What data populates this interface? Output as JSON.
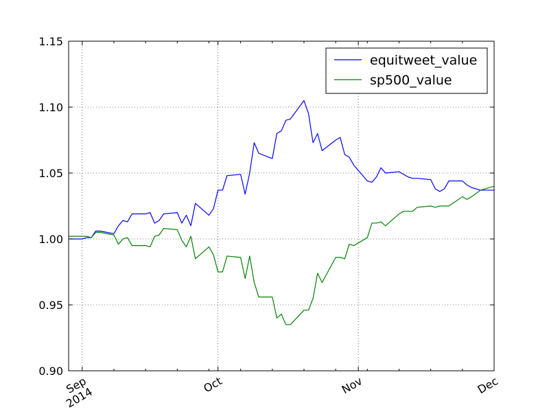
{
  "chart_data": {
    "type": "line",
    "title": "",
    "xlabel": "",
    "ylabel": "",
    "xlim": [
      "2014-08-29",
      "2014-12-01"
    ],
    "ylim": [
      0.9,
      1.15
    ],
    "grid": true,
    "legend_placement": "top-right",
    "y_ticks": [
      {
        "value": 0.9,
        "label": "0.90"
      },
      {
        "value": 0.95,
        "label": "0.95"
      },
      {
        "value": 1.0,
        "label": "1.00"
      },
      {
        "value": 1.05,
        "label": "1.05"
      },
      {
        "value": 1.1,
        "label": "1.10"
      },
      {
        "value": 1.15,
        "label": "1.15"
      }
    ],
    "x_major_ticks": [
      {
        "date": "2014-09-01",
        "label": "Sep",
        "sublabel": "2014"
      },
      {
        "date": "2014-10-01",
        "label": "Oct",
        "sublabel": ""
      },
      {
        "date": "2014-11-01",
        "label": "Nov",
        "sublabel": ""
      },
      {
        "date": "2014-12-01",
        "label": "Dec",
        "sublabel": ""
      }
    ],
    "x_minor_ticks": [
      "2014-09-08",
      "2014-09-15",
      "2014-09-22",
      "2014-09-29",
      "2014-10-06",
      "2014-10-13",
      "2014-10-20",
      "2014-10-27",
      "2014-11-03",
      "2014-11-10",
      "2014-11-17",
      "2014-11-24"
    ],
    "series": [
      {
        "name": "equitweet_value",
        "color": "#0000ff",
        "points": [
          [
            "2014-08-29",
            1.0
          ],
          [
            "2014-09-01",
            1.0
          ],
          [
            "2014-09-02",
            1.001
          ],
          [
            "2014-09-03",
            1.001
          ],
          [
            "2014-09-04",
            1.006
          ],
          [
            "2014-09-05",
            1.006
          ],
          [
            "2014-09-08",
            1.004
          ],
          [
            "2014-09-09",
            1.01
          ],
          [
            "2014-09-10",
            1.014
          ],
          [
            "2014-09-11",
            1.013
          ],
          [
            "2014-09-12",
            1.019
          ],
          [
            "2014-09-15",
            1.019
          ],
          [
            "2014-09-16",
            1.02
          ],
          [
            "2014-09-17",
            1.012
          ],
          [
            "2014-09-18",
            1.014
          ],
          [
            "2014-09-19",
            1.019
          ],
          [
            "2014-09-22",
            1.02
          ],
          [
            "2014-09-23",
            1.012
          ],
          [
            "2014-09-24",
            1.018
          ],
          [
            "2014-09-25",
            1.01
          ],
          [
            "2014-09-26",
            1.027
          ],
          [
            "2014-09-29",
            1.018
          ],
          [
            "2014-09-30",
            1.023
          ],
          [
            "2014-10-01",
            1.037
          ],
          [
            "2014-10-02",
            1.037
          ],
          [
            "2014-10-03",
            1.048
          ],
          [
            "2014-10-06",
            1.049
          ],
          [
            "2014-10-07",
            1.034
          ],
          [
            "2014-10-08",
            1.05
          ],
          [
            "2014-10-09",
            1.073
          ],
          [
            "2014-10-10",
            1.065
          ],
          [
            "2014-10-13",
            1.061
          ],
          [
            "2014-10-14",
            1.08
          ],
          [
            "2014-10-15",
            1.082
          ],
          [
            "2014-10-16",
            1.09
          ],
          [
            "2014-10-17",
            1.091
          ],
          [
            "2014-10-20",
            1.105
          ],
          [
            "2014-10-21",
            1.095
          ],
          [
            "2014-10-22",
            1.073
          ],
          [
            "2014-10-23",
            1.08
          ],
          [
            "2014-10-24",
            1.067
          ],
          [
            "2014-10-27",
            1.075
          ],
          [
            "2014-10-28",
            1.077
          ],
          [
            "2014-10-29",
            1.064
          ],
          [
            "2014-10-30",
            1.062
          ],
          [
            "2014-10-31",
            1.056
          ],
          [
            "2014-11-03",
            1.044
          ],
          [
            "2014-11-04",
            1.043
          ],
          [
            "2014-11-05",
            1.047
          ],
          [
            "2014-11-06",
            1.054
          ],
          [
            "2014-11-07",
            1.05
          ],
          [
            "2014-11-10",
            1.051
          ],
          [
            "2014-11-11",
            1.049
          ],
          [
            "2014-11-12",
            1.047
          ],
          [
            "2014-11-13",
            1.046
          ],
          [
            "2014-11-14",
            1.046
          ],
          [
            "2014-11-17",
            1.045
          ],
          [
            "2014-11-18",
            1.038
          ],
          [
            "2014-11-19",
            1.036
          ],
          [
            "2014-11-20",
            1.038
          ],
          [
            "2014-11-21",
            1.044
          ],
          [
            "2014-11-24",
            1.044
          ],
          [
            "2014-11-25",
            1.041
          ],
          [
            "2014-11-26",
            1.039
          ],
          [
            "2014-11-28",
            1.037
          ],
          [
            "2014-12-01",
            1.037
          ]
        ]
      },
      {
        "name": "sp500_value",
        "color": "#008000",
        "points": [
          [
            "2014-08-29",
            1.002
          ],
          [
            "2014-09-01",
            1.002
          ],
          [
            "2014-09-02",
            1.002
          ],
          [
            "2014-09-03",
            1.001
          ],
          [
            "2014-09-04",
            1.005
          ],
          [
            "2014-09-05",
            1.005
          ],
          [
            "2014-09-08",
            1.003
          ],
          [
            "2014-09-09",
            0.996
          ],
          [
            "2014-09-10",
            1.0
          ],
          [
            "2014-09-11",
            1.001
          ],
          [
            "2014-09-12",
            0.995
          ],
          [
            "2014-09-15",
            0.995
          ],
          [
            "2014-09-16",
            0.994
          ],
          [
            "2014-09-17",
            1.002
          ],
          [
            "2014-09-18",
            1.003
          ],
          [
            "2014-09-19",
            1.008
          ],
          [
            "2014-09-22",
            1.007
          ],
          [
            "2014-09-23",
            0.999
          ],
          [
            "2014-09-24",
            0.994
          ],
          [
            "2014-09-25",
            1.002
          ],
          [
            "2014-09-26",
            0.985
          ],
          [
            "2014-09-29",
            0.994
          ],
          [
            "2014-09-30",
            0.988
          ],
          [
            "2014-10-01",
            0.975
          ],
          [
            "2014-10-02",
            0.975
          ],
          [
            "2014-10-03",
            0.987
          ],
          [
            "2014-10-06",
            0.986
          ],
          [
            "2014-10-07",
            0.97
          ],
          [
            "2014-10-08",
            0.987
          ],
          [
            "2014-10-09",
            0.967
          ],
          [
            "2014-10-10",
            0.956
          ],
          [
            "2014-10-13",
            0.956
          ],
          [
            "2014-10-14",
            0.94
          ],
          [
            "2014-10-15",
            0.943
          ],
          [
            "2014-10-16",
            0.935
          ],
          [
            "2014-10-17",
            0.935
          ],
          [
            "2014-10-20",
            0.946
          ],
          [
            "2014-10-21",
            0.946
          ],
          [
            "2014-10-22",
            0.955
          ],
          [
            "2014-10-23",
            0.974
          ],
          [
            "2014-10-24",
            0.967
          ],
          [
            "2014-10-27",
            0.986
          ],
          [
            "2014-10-28",
            0.986
          ],
          [
            "2014-10-29",
            0.985
          ],
          [
            "2014-10-30",
            0.996
          ],
          [
            "2014-10-31",
            0.995
          ],
          [
            "2014-11-03",
            1.001
          ],
          [
            "2014-11-04",
            1.012
          ],
          [
            "2014-11-05",
            1.012
          ],
          [
            "2014-11-06",
            1.013
          ],
          [
            "2014-11-07",
            1.01
          ],
          [
            "2014-11-10",
            1.019
          ],
          [
            "2014-11-11",
            1.021
          ],
          [
            "2014-11-12",
            1.021
          ],
          [
            "2014-11-13",
            1.021
          ],
          [
            "2014-11-14",
            1.024
          ],
          [
            "2014-11-17",
            1.025
          ],
          [
            "2014-11-18",
            1.024
          ],
          [
            "2014-11-19",
            1.025
          ],
          [
            "2014-11-20",
            1.025
          ],
          [
            "2014-11-21",
            1.025
          ],
          [
            "2014-11-24",
            1.032
          ],
          [
            "2014-11-25",
            1.03
          ],
          [
            "2014-11-26",
            1.032
          ],
          [
            "2014-11-28",
            1.037
          ],
          [
            "2014-12-01",
            1.04
          ]
        ]
      }
    ]
  }
}
